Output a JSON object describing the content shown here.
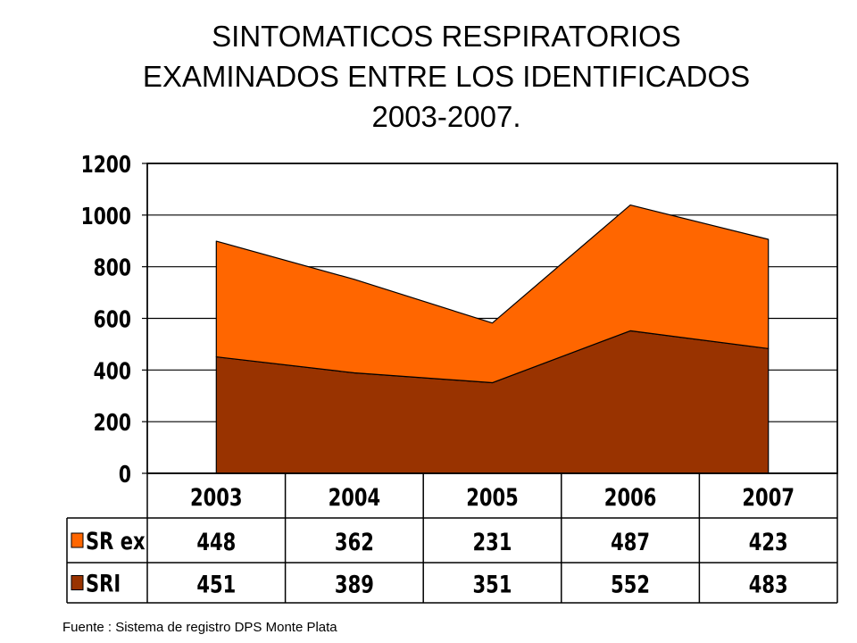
{
  "title": {
    "line1": "SINTOMATICOS RESPIRATORIOS",
    "line2": "EXAMINADOS ENTRE LOS IDENTIFICADOS",
    "line3": "2003-2007."
  },
  "source": "Fuente : Sistema de registro DPS Monte Plata",
  "colors": {
    "sr_ex": "#ff6600",
    "sri": "#993300",
    "grid": "#000000",
    "background": "#ffffff"
  },
  "chart_data": {
    "type": "area",
    "stacked": true,
    "categories": [
      "2003",
      "2004",
      "2005",
      "2006",
      "2007"
    ],
    "series": [
      {
        "name": "SRI",
        "values": [
          451,
          389,
          351,
          552,
          483
        ],
        "color": "#993300"
      },
      {
        "name": "SR ex",
        "values": [
          448,
          362,
          231,
          487,
          423
        ],
        "color": "#ff6600"
      }
    ],
    "y_ticks": [
      "0",
      "200",
      "400",
      "600",
      "800",
      "1000",
      "1200"
    ],
    "ylim": [
      0,
      1200
    ],
    "grid": true,
    "data_table": {
      "rows": [
        {
          "name": "SR ex",
          "values": [
            "448",
            "362",
            "231",
            "487",
            "423"
          ]
        },
        {
          "name": "SRI",
          "values": [
            "451",
            "389",
            "351",
            "552",
            "483"
          ]
        }
      ]
    }
  }
}
